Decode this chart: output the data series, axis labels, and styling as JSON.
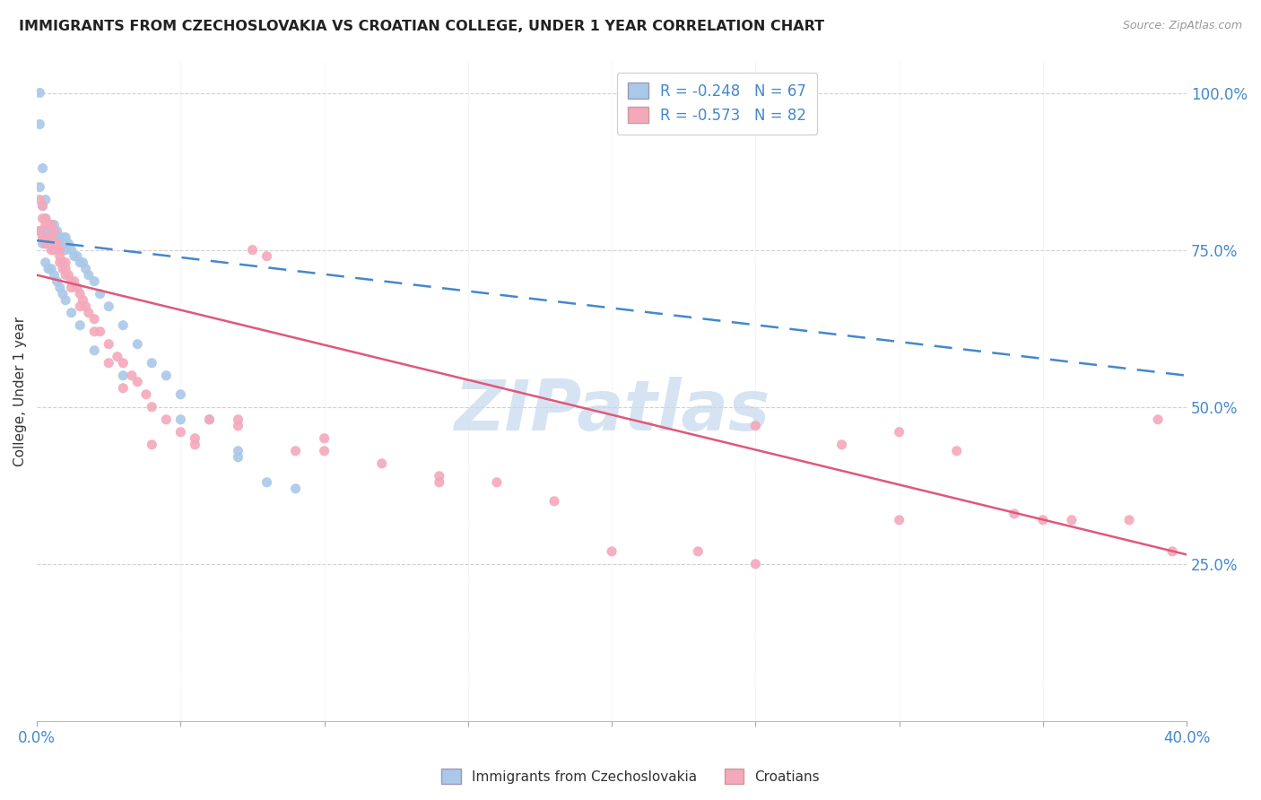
{
  "title": "IMMIGRANTS FROM CZECHOSLOVAKIA VS CROATIAN COLLEGE, UNDER 1 YEAR CORRELATION CHART",
  "source": "Source: ZipAtlas.com",
  "ylabel": "College, Under 1 year",
  "ylabel_right_ticks": [
    "100.0%",
    "75.0%",
    "50.0%",
    "25.0%"
  ],
  "ylabel_right_values": [
    1.0,
    0.75,
    0.5,
    0.25
  ],
  "legend_R_labels": [
    "R = -0.248   N = 67",
    "R = -0.573   N = 82"
  ],
  "legend_labels": [
    "Immigrants from Czechoslovakia",
    "Croatians"
  ],
  "series1_color": "#aac8e8",
  "series2_color": "#f4a8bc",
  "trendline1_color": "#4488cc",
  "trendline2_color": "#e05878",
  "watermark_text": "ZIPatlas",
  "watermark_color": "#c5d8ed",
  "xmin": 0.0,
  "xmax": 0.4,
  "ymin": 0.0,
  "ymax": 1.05,
  "trendline1_x0": 0.0,
  "trendline1_y0": 0.765,
  "trendline1_x1": 0.4,
  "trendline1_y1": 0.55,
  "trendline2_x0": 0.0,
  "trendline2_y0": 0.71,
  "trendline2_x1": 0.4,
  "trendline2_y1": 0.265,
  "series1_x": [
    0.001,
    0.001,
    0.001,
    0.001,
    0.002,
    0.002,
    0.002,
    0.002,
    0.002,
    0.003,
    0.003,
    0.003,
    0.003,
    0.004,
    0.004,
    0.004,
    0.005,
    0.005,
    0.005,
    0.005,
    0.006,
    0.006,
    0.006,
    0.007,
    0.007,
    0.007,
    0.008,
    0.008,
    0.009,
    0.009,
    0.01,
    0.01,
    0.01,
    0.011,
    0.012,
    0.013,
    0.014,
    0.015,
    0.016,
    0.017,
    0.018,
    0.02,
    0.022,
    0.025,
    0.03,
    0.035,
    0.04,
    0.045,
    0.05,
    0.06,
    0.07,
    0.08,
    0.003,
    0.004,
    0.005,
    0.006,
    0.007,
    0.008,
    0.009,
    0.01,
    0.012,
    0.015,
    0.02,
    0.03,
    0.05,
    0.07,
    0.09
  ],
  "series1_y": [
    1.0,
    0.95,
    0.85,
    0.78,
    0.88,
    0.82,
    0.78,
    0.77,
    0.76,
    0.83,
    0.8,
    0.78,
    0.76,
    0.78,
    0.77,
    0.76,
    0.79,
    0.78,
    0.77,
    0.76,
    0.79,
    0.78,
    0.76,
    0.78,
    0.77,
    0.76,
    0.77,
    0.76,
    0.77,
    0.76,
    0.77,
    0.76,
    0.75,
    0.76,
    0.75,
    0.74,
    0.74,
    0.73,
    0.73,
    0.72,
    0.71,
    0.7,
    0.68,
    0.66,
    0.63,
    0.6,
    0.57,
    0.55,
    0.52,
    0.48,
    0.43,
    0.38,
    0.73,
    0.72,
    0.72,
    0.71,
    0.7,
    0.69,
    0.68,
    0.67,
    0.65,
    0.63,
    0.59,
    0.55,
    0.48,
    0.42,
    0.37
  ],
  "series2_x": [
    0.001,
    0.001,
    0.002,
    0.002,
    0.002,
    0.003,
    0.003,
    0.003,
    0.004,
    0.004,
    0.004,
    0.005,
    0.005,
    0.005,
    0.006,
    0.006,
    0.006,
    0.007,
    0.007,
    0.008,
    0.008,
    0.009,
    0.009,
    0.01,
    0.01,
    0.011,
    0.012,
    0.013,
    0.014,
    0.015,
    0.016,
    0.017,
    0.018,
    0.02,
    0.022,
    0.025,
    0.028,
    0.03,
    0.033,
    0.035,
    0.038,
    0.04,
    0.045,
    0.05,
    0.055,
    0.06,
    0.07,
    0.075,
    0.08,
    0.09,
    0.1,
    0.12,
    0.14,
    0.16,
    0.2,
    0.23,
    0.25,
    0.28,
    0.3,
    0.32,
    0.34,
    0.36,
    0.38,
    0.395,
    0.005,
    0.008,
    0.01,
    0.012,
    0.015,
    0.02,
    0.025,
    0.03,
    0.04,
    0.055,
    0.07,
    0.1,
    0.14,
    0.18,
    0.25,
    0.3,
    0.35,
    0.39
  ],
  "series2_y": [
    0.83,
    0.78,
    0.82,
    0.8,
    0.77,
    0.8,
    0.79,
    0.76,
    0.79,
    0.77,
    0.76,
    0.79,
    0.77,
    0.76,
    0.78,
    0.76,
    0.75,
    0.76,
    0.75,
    0.75,
    0.74,
    0.73,
    0.72,
    0.73,
    0.72,
    0.71,
    0.7,
    0.7,
    0.69,
    0.68,
    0.67,
    0.66,
    0.65,
    0.64,
    0.62,
    0.6,
    0.58,
    0.57,
    0.55,
    0.54,
    0.52,
    0.5,
    0.48,
    0.46,
    0.44,
    0.48,
    0.48,
    0.75,
    0.74,
    0.43,
    0.45,
    0.41,
    0.39,
    0.38,
    0.27,
    0.27,
    0.47,
    0.44,
    0.46,
    0.43,
    0.33,
    0.32,
    0.32,
    0.27,
    0.75,
    0.73,
    0.71,
    0.69,
    0.66,
    0.62,
    0.57,
    0.53,
    0.44,
    0.45,
    0.47,
    0.43,
    0.38,
    0.35,
    0.25,
    0.32,
    0.32,
    0.48
  ]
}
